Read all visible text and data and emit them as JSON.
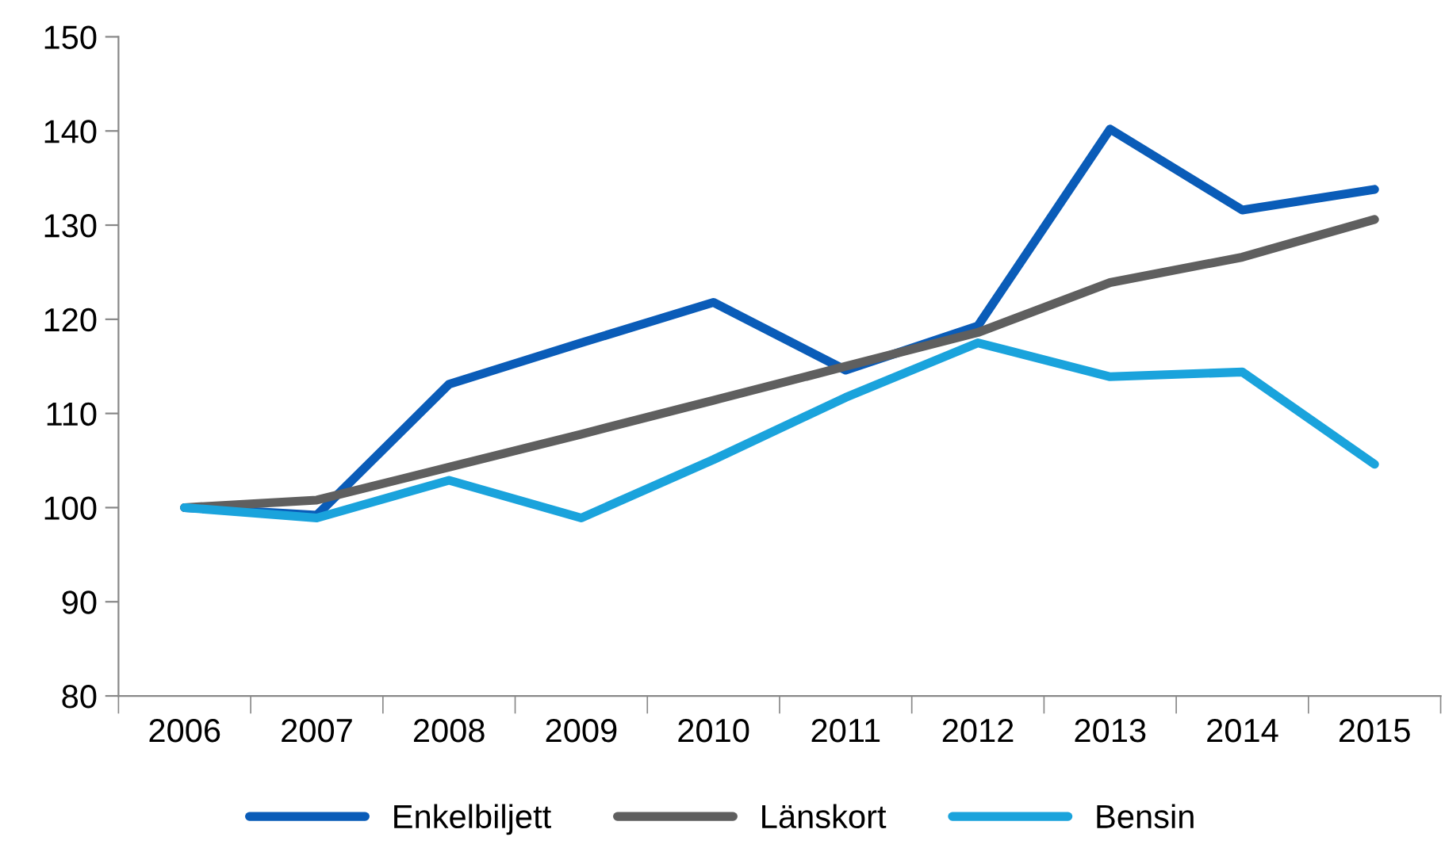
{
  "chart_data": {
    "type": "line",
    "categories": [
      "2006",
      "2007",
      "2008",
      "2009",
      "2010",
      "2011",
      "2012",
      "2013",
      "2014",
      "2015"
    ],
    "series": [
      {
        "name": "Enkelbiljett",
        "color": "#0a5cb8",
        "values": [
          100,
          99.2,
          113.1,
          117.5,
          121.8,
          114.6,
          119.3,
          140.2,
          131.6,
          133.8
        ]
      },
      {
        "name": "Länskort",
        "color": "#5f5f5f",
        "values": [
          100,
          100.8,
          104.3,
          107.8,
          111.4,
          115,
          118.6,
          123.9,
          126.6,
          130.6
        ]
      },
      {
        "name": "Bensin",
        "color": "#1aa3dc",
        "values": [
          100,
          98.9,
          102.9,
          98.9,
          105.1,
          111.7,
          117.5,
          113.9,
          114.4,
          104.6
        ]
      }
    ],
    "ylim": [
      80,
      150
    ],
    "yticks": [
      80,
      90,
      100,
      110,
      120,
      130,
      140,
      150
    ],
    "grid": false,
    "legend": "bottom",
    "marker": "none",
    "line_style": "solid"
  }
}
